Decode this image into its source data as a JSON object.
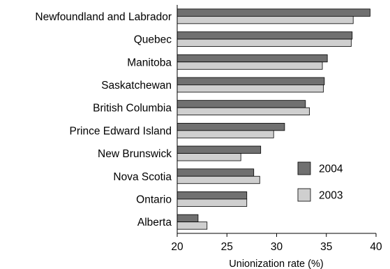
{
  "chart_data": {
    "type": "bar",
    "orientation": "horizontal",
    "categories": [
      "Newfoundland and Labrador",
      "Quebec",
      "Manitoba",
      "Saskatchewan",
      "British Columbia",
      "Prince Edward Island",
      "New Brunswick",
      "Nova Scotia",
      "Ontario",
      "Alberta"
    ],
    "series": [
      {
        "name": "2004",
        "color": "#707070",
        "values": [
          39.4,
          37.6,
          35.1,
          34.8,
          32.9,
          30.8,
          28.4,
          27.7,
          27.0,
          22.1
        ]
      },
      {
        "name": "2003",
        "color": "#cfcfcf",
        "values": [
          37.7,
          37.5,
          34.6,
          34.7,
          33.3,
          29.7,
          26.4,
          28.3,
          27.0,
          23.0
        ]
      }
    ],
    "title": "",
    "xlabel": "Unionization rate (%)",
    "ylabel": "",
    "xlim": [
      20,
      40
    ],
    "xticks": [
      "20",
      "25",
      "30",
      "35",
      "40"
    ],
    "grid": false,
    "legend_position": "right"
  }
}
